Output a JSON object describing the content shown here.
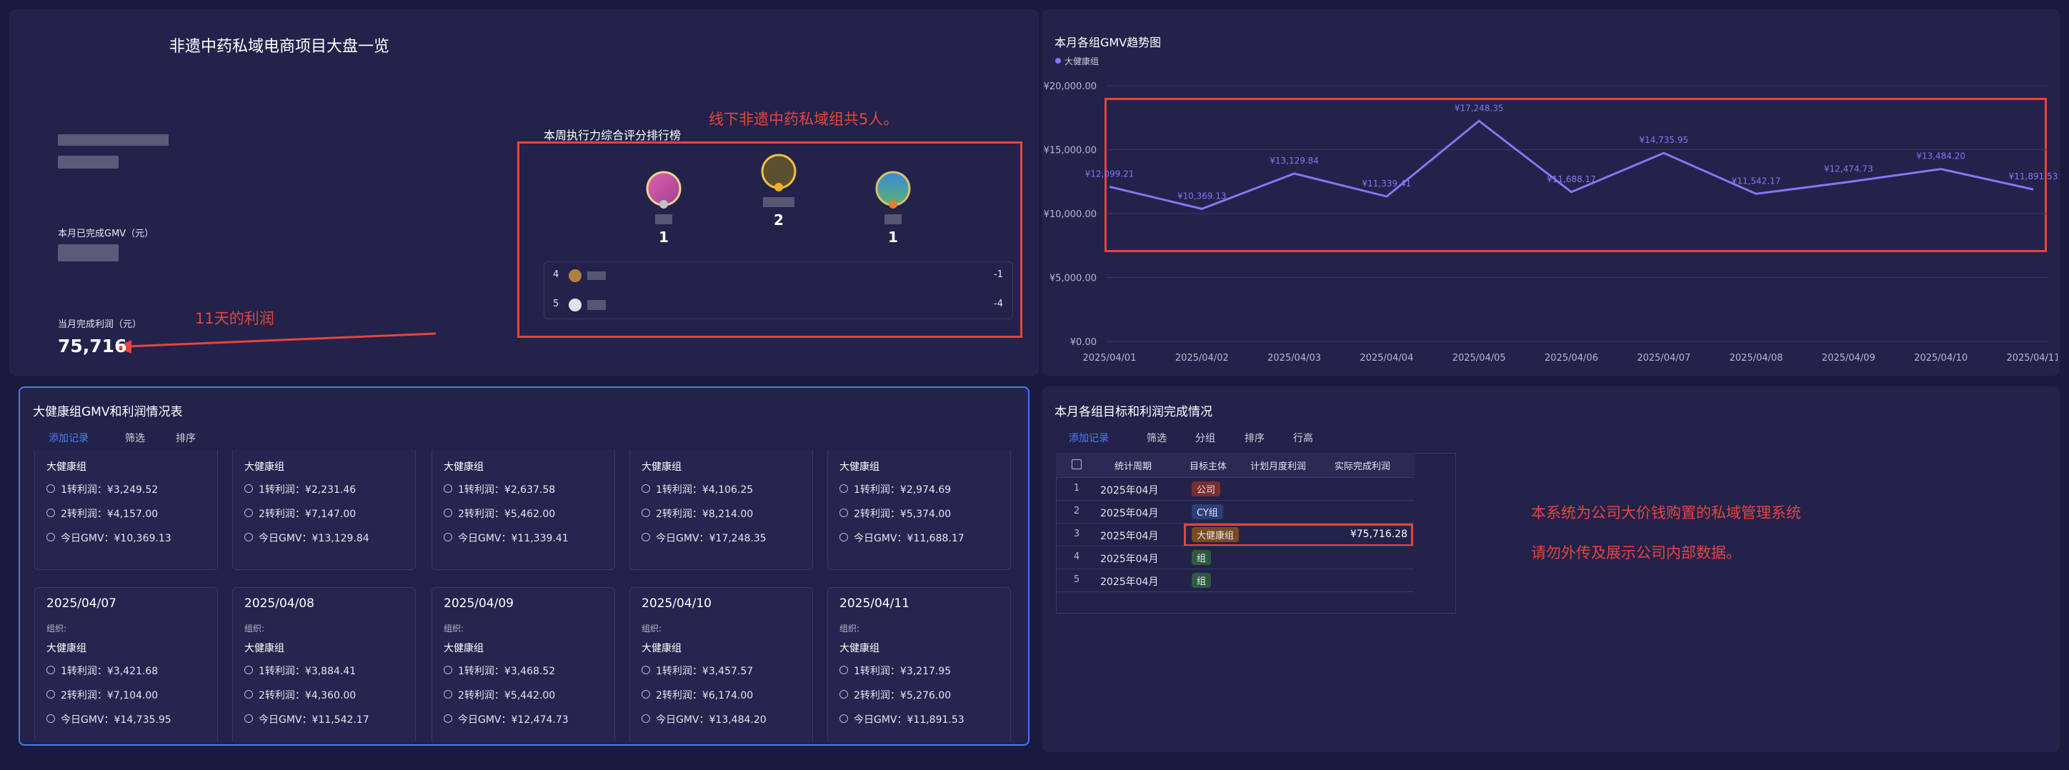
{
  "header": {
    "title": "非遗中药私域电商项目大盘一览"
  },
  "kpis": {
    "gmv_label": "本月已完成GMV（元）",
    "profit_label": "当月完成利润（元）",
    "profit_value": "75,716"
  },
  "annotations": {
    "profit_note": "11天的利润",
    "team_note": "线下非遗中药私域组共5人。",
    "notice": [
      "本系统为公司大价钱购置的私域管理系统",
      "请勿外传及展示公司内部数据。"
    ]
  },
  "ranking": {
    "title": "本周执行力综合评分排行榜",
    "podium": [
      1,
      2,
      1
    ],
    "rows": [
      {
        "rank": 4,
        "score": -1
      },
      {
        "rank": 5,
        "score": -4
      }
    ]
  },
  "chart_data": {
    "type": "line",
    "title": "本月各组GMV趋势图",
    "x": [
      "2025/04/01",
      "2025/04/02",
      "2025/04/03",
      "2025/04/04",
      "2025/04/05",
      "2025/04/06",
      "2025/04/07",
      "2025/04/08",
      "2025/04/09",
      "2025/04/10",
      "2025/04/11"
    ],
    "series": [
      {
        "name": "大健康组",
        "color": "#8676f2",
        "values": [
          12099.21,
          10369.13,
          13129.84,
          11339.41,
          17248.35,
          11688.17,
          14735.95,
          11542.17,
          12474.73,
          13484.2,
          11891.53
        ],
        "value_labels": [
          "¥12,099.21",
          "¥10,369.13",
          "¥13,129.84",
          "¥11,339.41",
          "¥17,248.35",
          "¥11,688.17",
          "¥14,735.95",
          "¥11,542.17",
          "¥12,474.73",
          "¥13,484.20",
          "¥11,891.53"
        ]
      }
    ],
    "ylim": [
      0,
      20000
    ],
    "yticks": [
      {
        "value": 0,
        "label": "¥0.00"
      },
      {
        "value": 5000,
        "label": "¥5,000.00"
      },
      {
        "value": 10000,
        "label": "¥10,000.00"
      },
      {
        "value": 15000,
        "label": "¥15,000.00"
      },
      {
        "value": 20000,
        "label": "¥20,000.00"
      }
    ],
    "grid": true
  },
  "card_table": {
    "title": "大健康组GMV和利润情况表",
    "toolbar": [
      "添加记录",
      "筛选",
      "排序"
    ],
    "org_label": "组织:",
    "cards": [
      {
        "group": "大健康组",
        "lines": [
          "1转利润：¥3,249.52",
          "2转利润：¥4,157.00",
          "今日GMV：¥10,369.13"
        ]
      },
      {
        "group": "大健康组",
        "lines": [
          "1转利润：¥2,231.46",
          "2转利润：¥7,147.00",
          "今日GMV：¥13,129.84"
        ]
      },
      {
        "group": "大健康组",
        "lines": [
          "1转利润：¥2,637.58",
          "2转利润：¥5,462.00",
          "今日GMV：¥11,339.41"
        ]
      },
      {
        "group": "大健康组",
        "lines": [
          "1转利润：¥4,106.25",
          "2转利润：¥8,214.00",
          "今日GMV：¥17,248.35"
        ]
      },
      {
        "group": "大健康组",
        "lines": [
          "1转利润：¥2,974.69",
          "2转利润：¥5,374.00",
          "今日GMV：¥11,688.17"
        ]
      },
      {
        "date": "2025/04/07",
        "group": "大健康组",
        "lines": [
          "1转利润：¥3,421.68",
          "2转利润：¥7,104.00",
          "今日GMV：¥14,735.95"
        ]
      },
      {
        "date": "2025/04/08",
        "group": "大健康组",
        "lines": [
          "1转利润：¥3,884.41",
          "2转利润：¥4,360.00",
          "今日GMV：¥11,542.17"
        ]
      },
      {
        "date": "2025/04/09",
        "group": "大健康组",
        "lines": [
          "1转利润：¥3,468.52",
          "2转利润：¥5,442.00",
          "今日GMV：¥12,474.73"
        ]
      },
      {
        "date": "2025/04/10",
        "group": "大健康组",
        "lines": [
          "1转利润：¥3,457.57",
          "2转利润：¥6,174.00",
          "今日GMV：¥13,484.20"
        ]
      },
      {
        "date": "2025/04/11",
        "group": "大健康组",
        "lines": [
          "1转利润：¥3,217.95",
          "2转利润：¥5,276.00",
          "今日GMV：¥11,891.53"
        ]
      }
    ]
  },
  "goal_table": {
    "title": "本月各组目标和利润完成情况",
    "toolbar": [
      "添加记录",
      "筛选",
      "分组",
      "排序",
      "行高"
    ],
    "columns": [
      "统计周期",
      "目标主体",
      "计划月度利润",
      "实际完成利润"
    ],
    "rows": [
      {
        "index": 1,
        "period": "2025年04月",
        "subject": "公司"
      },
      {
        "index": 2,
        "period": "2025年04月",
        "subject": "CY组"
      },
      {
        "index": 3,
        "period": "2025年04月",
        "subject": "大健康组",
        "actual": "¥75,716.28"
      },
      {
        "index": 4,
        "period": "2025年04月",
        "subject": "组"
      },
      {
        "index": 5,
        "period": "2025年04月",
        "subject": "组"
      }
    ]
  }
}
